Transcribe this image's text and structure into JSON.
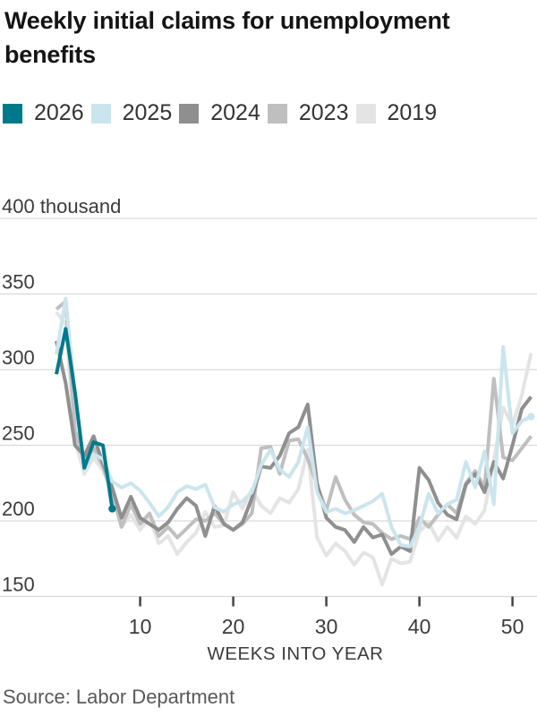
{
  "header": {
    "title": "Weekly initial claims for unemployment benefits"
  },
  "legend": {
    "items": [
      {
        "label": "2026",
        "color": "#00798c"
      },
      {
        "label": "2025",
        "color": "#cbe5ee"
      },
      {
        "label": "2024",
        "color": "#8f8f8f"
      },
      {
        "label": "2023",
        "color": "#bfbfbf"
      },
      {
        "label": "2019",
        "color": "#e4e4e4"
      }
    ]
  },
  "source": {
    "text": "Source: Labor Department"
  },
  "chart_data": {
    "type": "line",
    "title": "Weekly initial claims for unemployment benefits",
    "xlabel": "WEEKS INTO YEAR",
    "unit": "thousand",
    "x_start": 1,
    "x_end": 52,
    "ylim": [
      150,
      400
    ],
    "grid": "horizontal",
    "legend_position": "top",
    "yticks": [
      {
        "value": 400,
        "label": "400 thousand"
      },
      {
        "value": 350,
        "label": "350"
      },
      {
        "value": 300,
        "label": "300"
      },
      {
        "value": 250,
        "label": "250"
      },
      {
        "value": 200,
        "label": "200"
      },
      {
        "value": 150,
        "label": "150"
      }
    ],
    "xticks": [
      10,
      20,
      30,
      40,
      50
    ],
    "series": [
      {
        "name": "2019",
        "color": "#e4e4e4",
        "end_dot": false,
        "values": [
          338,
          330,
          253,
          231,
          242,
          233,
          220,
          196,
          204,
          194,
          202,
          185,
          190,
          178,
          186,
          192,
          206,
          196,
          197,
          219,
          208,
          221,
          210,
          205,
          215,
          212,
          221,
          247,
          189,
          177,
          185,
          180,
          171,
          179,
          176,
          158,
          175,
          172,
          173,
          193,
          199,
          187,
          196,
          189,
          203,
          198,
          207,
          240,
          275,
          263,
          283,
          311
        ]
      },
      {
        "name": "2023",
        "color": "#bfbfbf",
        "end_dot": false,
        "values": [
          340,
          345,
          260,
          240,
          248,
          236,
          218,
          196,
          211,
          198,
          205,
          190,
          196,
          189,
          195,
          201,
          200,
          205,
          198,
          194,
          198,
          205,
          248,
          249,
          231,
          253,
          254,
          241,
          224,
          207,
          229,
          214,
          204,
          199,
          198,
          192,
          188,
          190,
          188,
          202,
          196,
          204,
          211,
          205,
          225,
          233,
          222,
          294,
          242,
          240,
          248,
          256
        ]
      },
      {
        "name": "2024",
        "color": "#8f8f8f",
        "end_dot": false,
        "values": [
          319,
          291,
          250,
          243,
          256,
          238,
          222,
          202,
          216,
          202,
          198,
          194,
          199,
          208,
          215,
          210,
          190,
          210,
          198,
          194,
          199,
          215,
          236,
          235,
          243,
          258,
          262,
          277,
          225,
          202,
          196,
          194,
          186,
          196,
          189,
          191,
          178,
          183,
          180,
          235,
          227,
          212,
          204,
          201,
          224,
          231,
          219,
          239,
          228,
          250,
          274,
          282
        ]
      },
      {
        "name": "2025",
        "color": "#cbe5ee",
        "end_dot": true,
        "values": [
          310,
          347,
          283,
          234,
          244,
          241,
          226,
          222,
          225,
          220,
          212,
          203,
          209,
          219,
          223,
          221,
          224,
          209,
          206,
          211,
          213,
          219,
          237,
          247,
          234,
          229,
          239,
          262,
          219,
          206,
          208,
          205,
          207,
          210,
          213,
          218,
          196,
          184,
          183,
          196,
          218,
          205,
          211,
          214,
          239,
          222,
          246,
          211,
          315,
          258,
          266,
          269
        ]
      },
      {
        "name": "2026",
        "color": "#00798c",
        "end_dot": true,
        "values": [
          297,
          327,
          285,
          235,
          252,
          250,
          208
        ]
      }
    ]
  }
}
